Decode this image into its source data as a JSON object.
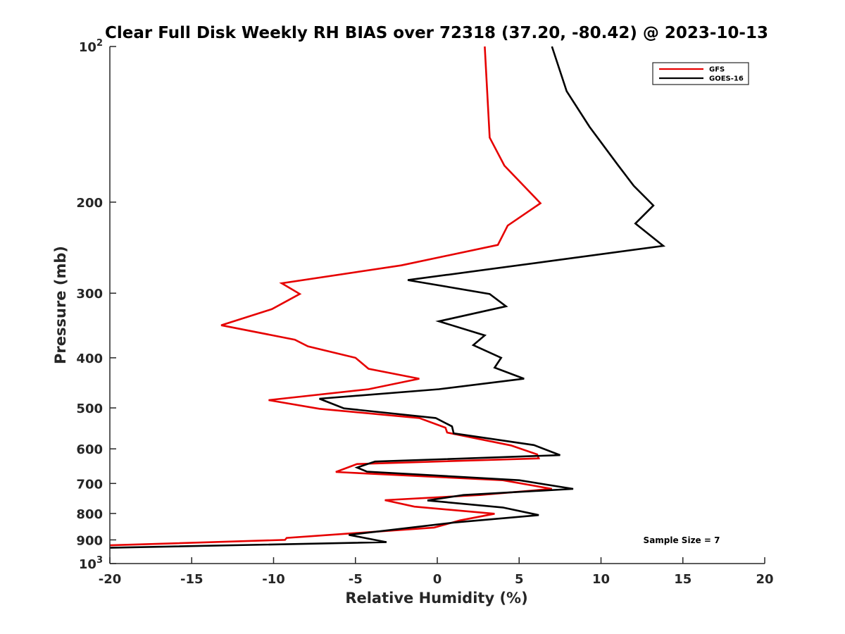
{
  "chart_data": {
    "type": "line",
    "title": "Clear Full Disk Weekly RH BIAS over 72318 (37.20, -80.42) @ 2023-10-13",
    "xlabel": "Relative Humidity (%)",
    "ylabel": "Pressure (mb)",
    "xlim": [
      -20,
      20
    ],
    "ylim": [
      100,
      1000
    ],
    "y_scale": "log",
    "y_reversed": true,
    "grid": false,
    "legend_position": "top-right",
    "x_ticks": [
      "-20",
      "-15",
      "-10",
      "-5",
      "0",
      "5",
      "10",
      "15",
      "20"
    ],
    "y_ticks": [
      {
        "value": 100,
        "label": "10",
        "sup": "2"
      },
      {
        "value": 200,
        "label": "200"
      },
      {
        "value": 300,
        "label": "300"
      },
      {
        "value": 400,
        "label": "400"
      },
      {
        "value": 500,
        "label": "500"
      },
      {
        "value": 600,
        "label": "600"
      },
      {
        "value": 700,
        "label": "700"
      },
      {
        "value": 800,
        "label": "800"
      },
      {
        "value": 900,
        "label": "900"
      },
      {
        "value": 1000,
        "label": "10",
        "sup": "3"
      }
    ],
    "series": [
      {
        "name": "GFS",
        "color": "#e60000",
        "points": [
          [
            2.9,
            100
          ],
          [
            3.2,
            150
          ],
          [
            4.1,
            170
          ],
          [
            6.3,
            201
          ],
          [
            4.3,
            222
          ],
          [
            3.7,
            242
          ],
          [
            -2.2,
            265
          ],
          [
            -9.5,
            287
          ],
          [
            -8.4,
            301
          ],
          [
            -10.1,
            322
          ],
          [
            -13.2,
            346
          ],
          [
            -8.7,
            369
          ],
          [
            -7.9,
            380
          ],
          [
            -5.0,
            400
          ],
          [
            -4.2,
            420
          ],
          [
            -1.1,
            439
          ],
          [
            -4.2,
            460
          ],
          [
            -10.3,
            483
          ],
          [
            -7.2,
            502
          ],
          [
            -1.1,
            523
          ],
          [
            0.5,
            546
          ],
          [
            0.6,
            558
          ],
          [
            4.5,
            591
          ],
          [
            6.1,
            615
          ],
          [
            6.2,
            626
          ],
          [
            -4.9,
            642
          ],
          [
            -6.2,
            665
          ],
          [
            4.0,
            690
          ],
          [
            7.0,
            717
          ],
          [
            2.6,
            737
          ],
          [
            -3.2,
            754
          ],
          [
            -1.4,
            776
          ],
          [
            3.5,
            801
          ],
          [
            1.4,
            825
          ],
          [
            -0.2,
            852
          ],
          [
            -9.2,
            892
          ],
          [
            -9.3,
            900
          ],
          [
            -20.0,
            922
          ]
        ]
      },
      {
        "name": "GOES-16",
        "color": "#000000",
        "points": [
          [
            7.0,
            100
          ],
          [
            7.9,
            122
          ],
          [
            9.3,
            143
          ],
          [
            11.0,
            169
          ],
          [
            12.0,
            186
          ],
          [
            13.2,
            203
          ],
          [
            12.1,
            220
          ],
          [
            13.8,
            243
          ],
          [
            6.5,
            261
          ],
          [
            -1.8,
            283
          ],
          [
            3.2,
            301
          ],
          [
            4.2,
            318
          ],
          [
            0.1,
            340
          ],
          [
            2.9,
            362
          ],
          [
            2.2,
            378
          ],
          [
            3.9,
            400
          ],
          [
            3.5,
            418
          ],
          [
            5.3,
            439
          ],
          [
            0.1,
            460
          ],
          [
            -7.2,
            480
          ],
          [
            -5.7,
            501
          ],
          [
            -0.1,
            523
          ],
          [
            0.9,
            543
          ],
          [
            1.0,
            560
          ],
          [
            5.9,
            590
          ],
          [
            7.5,
            617
          ],
          [
            -3.8,
            635
          ],
          [
            -4.9,
            652
          ],
          [
            -4.3,
            664
          ],
          [
            5.0,
            690
          ],
          [
            8.3,
            717
          ],
          [
            1.6,
            737
          ],
          [
            -0.6,
            755
          ],
          [
            4.0,
            779
          ],
          [
            6.2,
            806
          ],
          [
            1.0,
            833
          ],
          [
            -5.4,
            880
          ],
          [
            -3.1,
            909
          ],
          [
            -20.0,
            932
          ]
        ]
      }
    ],
    "annotations": [
      {
        "text": "Sample Size = 7"
      }
    ]
  }
}
